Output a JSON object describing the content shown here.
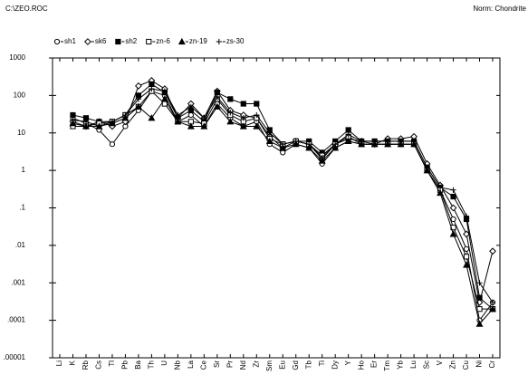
{
  "chart_data": {
    "type": "line",
    "title": "C:\\ZEO.ROC",
    "subtitle": "Norm: Chondrite",
    "yscale": "log",
    "ylim": [
      1e-05,
      1000
    ],
    "yticks": [
      1000,
      100,
      10,
      1,
      {
        "value": 0.1,
        "label": ".1"
      },
      {
        "value": 0.01,
        "label": ".01"
      },
      {
        "value": 0.001,
        "label": ".001"
      },
      {
        "value": 0.0001,
        "label": ".0001"
      },
      {
        "value": 1e-05,
        "label": ".00001"
      }
    ],
    "categories": [
      "Li",
      "K",
      "Rb",
      "Cs",
      "Tl",
      "Pb",
      "Ba",
      "Th",
      "U",
      "Nb",
      "La",
      "Ce",
      "Sr",
      "Pr",
      "Nd",
      "Zr",
      "Sm",
      "Eu",
      "Gd",
      "Tb",
      "Ti",
      "Dy",
      "Y",
      "Ho",
      "Er",
      "Tm",
      "Yb",
      "Lu",
      "Sc",
      "V",
      "Zn",
      "Cu",
      "Ni",
      "Cr"
    ],
    "legend": "top-left",
    "series": [
      {
        "name": "sh1",
        "marker": "circle",
        "color": "#000000",
        "values": [
          null,
          25,
          18,
          12,
          5,
          15,
          40,
          130,
          100,
          20,
          30,
          15,
          60,
          25,
          15,
          20,
          5,
          3,
          5,
          4,
          1.5,
          4,
          6,
          5,
          5,
          5,
          5,
          5,
          1,
          0.3,
          0.05,
          0.008,
          0.0001,
          0.0003
        ]
      },
      {
        "name": "sk6",
        "marker": "diamond",
        "color": "#000000",
        "values": [
          null,
          20,
          15,
          20,
          15,
          20,
          180,
          250,
          150,
          25,
          60,
          25,
          130,
          40,
          30,
          25,
          8,
          4,
          6,
          5,
          2,
          5,
          7,
          6,
          5,
          7,
          7,
          8,
          1.5,
          0.4,
          0.1,
          0.02,
          0.0003,
          0.007
        ]
      },
      {
        "name": "sh2",
        "marker": "square-filled",
        "color": "#000000",
        "values": [
          null,
          30,
          25,
          20,
          20,
          30,
          100,
          200,
          120,
          25,
          40,
          20,
          120,
          80,
          60,
          60,
          12,
          5,
          6,
          6,
          3,
          6,
          12,
          6,
          6,
          6,
          6,
          6,
          1.2,
          0.35,
          0.2,
          0.05,
          0.0004,
          0.0002
        ]
      },
      {
        "name": "zn-6",
        "marker": "square",
        "color": "#000000",
        "values": [
          null,
          15,
          15,
          18,
          20,
          30,
          50,
          130,
          60,
          20,
          20,
          18,
          80,
          30,
          20,
          25,
          7,
          5,
          6,
          5,
          2.5,
          5,
          8,
          5,
          5,
          5,
          5,
          5,
          1,
          0.3,
          0.03,
          0.005,
          0.0002,
          0.0002
        ]
      },
      {
        "name": "zn-19",
        "marker": "triangle",
        "color": "#000000",
        "values": [
          null,
          18,
          15,
          15,
          18,
          25,
          50,
          25,
          80,
          20,
          15,
          15,
          50,
          20,
          15,
          15,
          6,
          4,
          5,
          4,
          1.8,
          4,
          6,
          5,
          5,
          5,
          5,
          5,
          1,
          0.25,
          0.02,
          0.003,
          8e-05,
          0.0002
        ]
      },
      {
        "name": "zs-30",
        "marker": "plus",
        "color": "#000000",
        "values": [
          null,
          22,
          20,
          15,
          20,
          30,
          80,
          150,
          130,
          30,
          50,
          25,
          90,
          35,
          25,
          30,
          10,
          5,
          6,
          5,
          2.2,
          5,
          9,
          6,
          6,
          6,
          6,
          6,
          1.2,
          0.35,
          0.3,
          0.06,
          0.001,
          0.0003
        ]
      }
    ]
  }
}
